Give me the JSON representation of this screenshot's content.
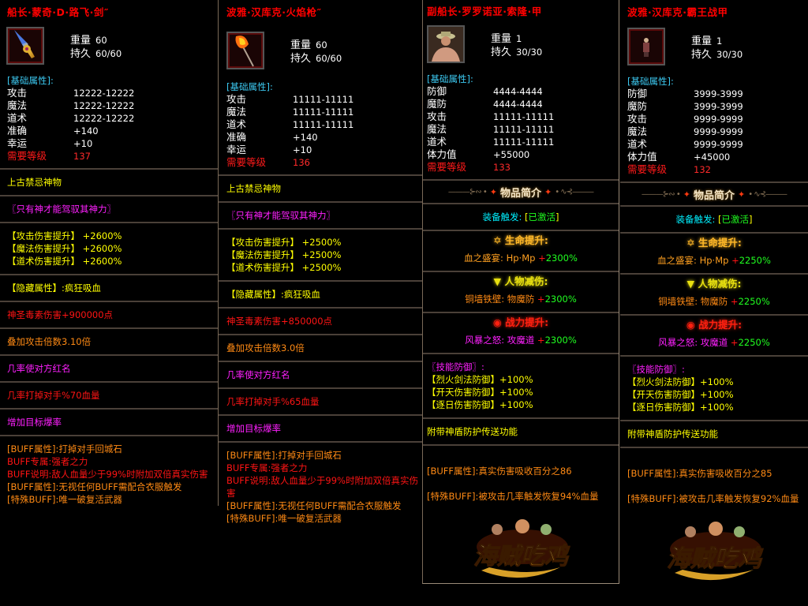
{
  "colors": {
    "w": "#ffffff",
    "y": "#ffff00",
    "m": "#ff20ff",
    "r": "#ff1414",
    "o": "#ff8a14",
    "c": "#00f0ff",
    "g": "#20ff20",
    "gold": "#ffb828",
    "yl": "#e8e010",
    "red": "#ff2010",
    "or": "#ffa020"
  },
  "labels": {
    "weight": "重量",
    "durability": "持久",
    "base_header": "[基础属性]:",
    "req": "需要等级",
    "intro": "物品简介"
  },
  "panels": [
    {
      "title": "船长·蒙奇·D·路飞·剑″",
      "item_icon": "sword-icon",
      "weight": "60",
      "durability": "60/60",
      "stats": [
        {
          "k": "攻击",
          "v": "12222-12222"
        },
        {
          "k": "魔法",
          "v": "12222-12222"
        },
        {
          "k": "道术",
          "v": "12222-12222"
        },
        {
          "k": "准确",
          "v": "+140"
        },
        {
          "k": "幸运",
          "v": "+10"
        }
      ],
      "req": "137",
      "sections": [
        {
          "lines": [
            [
              {
                "t": "上古禁忌神物",
                "c": "y"
              }
            ]
          ]
        },
        {
          "lines": [
            [
              {
                "t": "〖只有神才能驾驭其神力〗",
                "c": "m"
              }
            ]
          ]
        },
        {
          "lines": [
            [
              {
                "t": "【攻击伤害提升】 +2600%",
                "c": "y"
              }
            ],
            [
              {
                "t": "【魔法伤害提升】 +2600%",
                "c": "y"
              }
            ],
            [
              {
                "t": "【道术伤害提升】 +2600%",
                "c": "y"
              }
            ]
          ]
        },
        {
          "lines": [
            [
              {
                "t": "【隐藏属性】:疯狂吸血",
                "c": "y"
              }
            ]
          ]
        },
        {
          "lines": [
            [
              {
                "t": "神圣毒素伤害+900000点",
                "c": "r"
              }
            ]
          ]
        },
        {
          "lines": [
            [
              {
                "t": "叠加攻击倍数3.10倍",
                "c": "o"
              }
            ]
          ]
        },
        {
          "lines": [
            [
              {
                "t": "几率使对方红名",
                "c": "m"
              }
            ]
          ]
        },
        {
          "lines": [
            [
              {
                "t": "几率打掉对手%70血量",
                "c": "r"
              }
            ]
          ]
        },
        {
          "lines": [
            [
              {
                "t": "增加目标爆率",
                "c": "m"
              }
            ]
          ]
        },
        {
          "lines": [
            [
              {
                "t": "[BUFF属性]:打掉对手回城石",
                "c": "o"
              }
            ],
            [
              {
                "t": "BUFF专属:强者之力",
                "c": "r"
              }
            ],
            [
              {
                "t": "BUFF说明:敌人血量少于99%时附加双倍真实伤害",
                "c": "r"
              }
            ],
            [
              {
                "t": "[BUFF属性]:无视任何BUFF需配合衣服触发",
                "c": "o"
              }
            ],
            [
              {
                "t": "[特殊BUFF]:唯一破复活武器",
                "c": "o"
              }
            ]
          ]
        }
      ]
    },
    {
      "title": "波雅·汉库克·火焰枪″",
      "item_icon": "flame-spear-icon",
      "weight": "60",
      "durability": "60/60",
      "stats": [
        {
          "k": "攻击",
          "v": "11111-11111"
        },
        {
          "k": "魔法",
          "v": "11111-11111"
        },
        {
          "k": "道术",
          "v": "11111-11111"
        },
        {
          "k": "准确",
          "v": "+140"
        },
        {
          "k": "幸运",
          "v": "+10"
        }
      ],
      "req": "136",
      "sections": [
        {
          "lines": [
            [
              {
                "t": "上古禁忌神物",
                "c": "y"
              }
            ]
          ]
        },
        {
          "lines": [
            [
              {
                "t": "〖只有神才能驾驭其神力〗",
                "c": "m"
              }
            ]
          ]
        },
        {
          "lines": [
            [
              {
                "t": "【攻击伤害提升】 +2500%",
                "c": "y"
              }
            ],
            [
              {
                "t": "【魔法伤害提升】 +2500%",
                "c": "y"
              }
            ],
            [
              {
                "t": "【道术伤害提升】 +2500%",
                "c": "y"
              }
            ]
          ]
        },
        {
          "lines": [
            [
              {
                "t": "【隐藏属性】:疯狂吸血",
                "c": "y"
              }
            ]
          ]
        },
        {
          "lines": [
            [
              {
                "t": "神圣毒素伤害+850000点",
                "c": "r"
              }
            ]
          ]
        },
        {
          "lines": [
            [
              {
                "t": "叠加攻击倍数3.0倍",
                "c": "o"
              }
            ]
          ]
        },
        {
          "lines": [
            [
              {
                "t": "几率使对方红名",
                "c": "m"
              }
            ]
          ]
        },
        {
          "lines": [
            [
              {
                "t": "几率打掉对手%65血量",
                "c": "r"
              }
            ]
          ]
        },
        {
          "lines": [
            [
              {
                "t": "增加目标爆率",
                "c": "m"
              }
            ]
          ]
        },
        {
          "lines": [
            [
              {
                "t": "[BUFF属性]:打掉对手回城石",
                "c": "o"
              }
            ],
            [
              {
                "t": "BUFF专属:强者之力",
                "c": "r"
              }
            ],
            [
              {
                "t": "BUFF说明:敌人血量少于99%时附加双倍真实伤害",
                "c": "r"
              }
            ],
            [
              {
                "t": "[BUFF属性]:无视任何BUFF需配合衣服触发",
                "c": "o"
              }
            ],
            [
              {
                "t": "[特殊BUFF]:唯一破复活武器",
                "c": "o"
              }
            ]
          ]
        }
      ]
    },
    {
      "title": "副船长·罗罗诺亚·索隆·甲",
      "item_icon": "armor-portrait-icon",
      "weight": "1",
      "durability": "30/30",
      "stats": [
        {
          "k": "防御",
          "v": "4444-4444"
        },
        {
          "k": "魔防",
          "v": "4444-4444"
        },
        {
          "k": "攻击",
          "v": "11111-11111"
        },
        {
          "k": "魔法",
          "v": "11111-11111"
        },
        {
          "k": "道术",
          "v": "11111-11111"
        },
        {
          "k": "体力值",
          "v": "+55000"
        }
      ],
      "req": "133",
      "intro": true,
      "sections": [
        {
          "center": true,
          "lines": [
            [
              {
                "t": "装备触发: ",
                "c": "c"
              },
              {
                "t": "[",
                "c": "y"
              },
              {
                "t": "已激活",
                "c": "g"
              },
              {
                "t": "]",
                "c": "y"
              }
            ]
          ]
        },
        {
          "effect": {
            "icon": "star-icon",
            "glyph": "✡",
            "head": "生命提升:",
            "hc": "gold",
            "line": [
              {
                "t": "血之盛宴: Hp·Mp ",
                "c": "or"
              },
              {
                "t": "+",
                "c": "r"
              },
              {
                "t": "2300%",
                "c": "g"
              }
            ]
          }
        },
        {
          "effect": {
            "icon": "triangle-down-icon",
            "glyph": "▼",
            "head": "人物减伤:",
            "hc": "yl",
            "line": [
              {
                "t": "铜墙铁壁: 物魔防 ",
                "c": "o"
              },
              {
                "t": "+",
                "c": "r"
              },
              {
                "t": "2300%",
                "c": "g"
              }
            ]
          }
        },
        {
          "effect": {
            "icon": "target-icon",
            "glyph": "◉",
            "head": "战力提升:",
            "hc": "red",
            "line": [
              {
                "t": "风暴之怒: 攻魔道 ",
                "c": "m"
              },
              {
                "t": "+",
                "c": "r"
              },
              {
                "t": "2300%",
                "c": "g"
              }
            ]
          }
        },
        {
          "lines": [
            [
              {
                "t": "〖技能防御〗:",
                "c": "m"
              }
            ],
            [
              {
                "t": "【烈火剑法防御】+100%",
                "c": "y"
              }
            ],
            [
              {
                "t": "【开天伤害防御】+100%",
                "c": "y"
              }
            ],
            [
              {
                "t": "【逐日伤害防御】+100%",
                "c": "y"
              }
            ]
          ]
        },
        {
          "lines": [
            [
              {
                "t": "附带神盾防护传送功能",
                "c": "y"
              }
            ]
          ]
        },
        {
          "buff": true,
          "lines": [
            [],
            [
              {
                "t": "[BUFF属性]:真实伤害吸收百分之86",
                "c": "o"
              }
            ],
            [],
            [
              {
                "t": "[特殊BUFF]:被攻击几率触发恢复94%血量",
                "c": "o"
              }
            ]
          ]
        }
      ],
      "logo": "海贼吃鸡"
    },
    {
      "title": "波雅·汉库克·霸王战甲",
      "item_icon": "armor-figure-icon",
      "weight": "1",
      "durability": "30/30",
      "stats": [
        {
          "k": "防御",
          "v": "3999-3999"
        },
        {
          "k": "魔防",
          "v": "3999-3999"
        },
        {
          "k": "攻击",
          "v": "9999-9999"
        },
        {
          "k": "魔法",
          "v": "9999-9999"
        },
        {
          "k": "道术",
          "v": "9999-9999"
        },
        {
          "k": "体力值",
          "v": "+45000"
        }
      ],
      "req": "132",
      "intro": true,
      "sections": [
        {
          "center": true,
          "lines": [
            [
              {
                "t": "装备触发: ",
                "c": "c"
              },
              {
                "t": "[",
                "c": "y"
              },
              {
                "t": "已激活",
                "c": "g"
              },
              {
                "t": "]",
                "c": "y"
              }
            ]
          ]
        },
        {
          "effect": {
            "icon": "star-icon",
            "glyph": "✡",
            "head": "生命提升:",
            "hc": "gold",
            "line": [
              {
                "t": "血之盛宴: Hp·Mp ",
                "c": "or"
              },
              {
                "t": "+",
                "c": "r"
              },
              {
                "t": "2250%",
                "c": "g"
              }
            ]
          }
        },
        {
          "effect": {
            "icon": "triangle-down-icon",
            "glyph": "▼",
            "head": "人物减伤:",
            "hc": "yl",
            "line": [
              {
                "t": "铜墙铁壁: 物魔防 ",
                "c": "o"
              },
              {
                "t": "+",
                "c": "r"
              },
              {
                "t": "2250%",
                "c": "g"
              }
            ]
          }
        },
        {
          "effect": {
            "icon": "target-icon",
            "glyph": "◉",
            "head": "战力提升:",
            "hc": "red",
            "line": [
              {
                "t": "风暴之怒: 攻魔道 ",
                "c": "m"
              },
              {
                "t": "+",
                "c": "r"
              },
              {
                "t": "2250%",
                "c": "g"
              }
            ]
          }
        },
        {
          "lines": [
            [
              {
                "t": "〖技能防御〗:",
                "c": "m"
              }
            ],
            [
              {
                "t": "【烈火剑法防御】+100%",
                "c": "y"
              }
            ],
            [
              {
                "t": "【开天伤害防御】+100%",
                "c": "y"
              }
            ],
            [
              {
                "t": "【逐日伤害防御】+100%",
                "c": "y"
              }
            ]
          ]
        },
        {
          "lines": [
            [
              {
                "t": "附带神盾防护传送功能",
                "c": "y"
              }
            ]
          ]
        },
        {
          "buff": true,
          "lines": [
            [],
            [
              {
                "t": "[BUFF属性]:真实伤害吸收百分之85",
                "c": "o"
              }
            ],
            [],
            [
              {
                "t": "[特殊BUFF]:被攻击几率触发恢复92%血量",
                "c": "o"
              }
            ]
          ]
        }
      ],
      "logo": "海贼吃鸡"
    }
  ]
}
